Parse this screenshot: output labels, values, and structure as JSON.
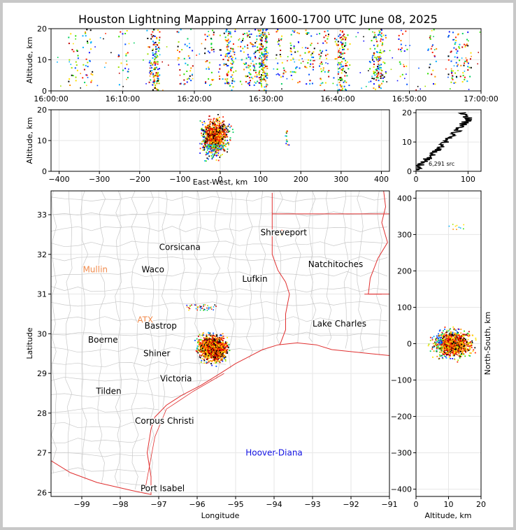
{
  "chart_data": [
    {
      "panel": "time-altitude",
      "type": "scatter",
      "title": "Houston Lightning Mapping Array 1600-1700 UTC June 08, 2025",
      "ylabel": "Altitude, km",
      "xlim": [
        "16:00:00",
        "17:00:00"
      ],
      "ylim": [
        0,
        20
      ],
      "x_ticks": [
        "16:00:00",
        "16:10:00",
        "16:20:00",
        "16:30:00",
        "16:40:00",
        "16:50:00",
        "17:00:00"
      ],
      "y_ticks": [
        0,
        10,
        20
      ],
      "activity_times_min": [
        3,
        5,
        10,
        14,
        18,
        19,
        22,
        24,
        25,
        27,
        28,
        29,
        32,
        34,
        36,
        38,
        40,
        41,
        45,
        46,
        49,
        53,
        56,
        57,
        58
      ]
    },
    {
      "panel": "east-west-altitude",
      "type": "scatter",
      "xlabel": "East-West, km",
      "ylabel": "Altitude, km",
      "xlim": [
        -420,
        420
      ],
      "ylim": [
        0,
        20
      ],
      "x_ticks": [
        -400,
        -300,
        -200,
        -100,
        0,
        100,
        200,
        300,
        400
      ],
      "y_ticks": [
        0,
        10,
        20
      ]
    },
    {
      "panel": "altitude-histogram",
      "type": "line",
      "xlim": [
        0,
        125
      ],
      "ylim": [
        0,
        21
      ],
      "x_ticks": [
        0,
        100
      ],
      "y_ticks": [
        0,
        10,
        20
      ],
      "annotation": "6,291 src",
      "series": [
        {
          "points": [
            [
              2,
              0.5
            ],
            [
              8,
              2
            ],
            [
              20,
              4
            ],
            [
              28,
              5.5
            ],
            [
              38,
              7
            ],
            [
              48,
              8.5
            ],
            [
              58,
              10
            ],
            [
              64,
              11
            ],
            [
              70,
              12
            ],
            [
              75,
              13
            ],
            [
              80,
              14
            ],
            [
              85,
              15
            ],
            [
              90,
              16
            ],
            [
              97,
              17
            ],
            [
              100,
              18
            ],
            [
              95,
              19
            ],
            [
              90,
              20
            ]
          ]
        }
      ]
    },
    {
      "panel": "map",
      "type": "scatter",
      "xlabel": "Longitude",
      "ylabel": "Latitude",
      "xlim": [
        -99.8,
        -91
      ],
      "ylim": [
        25.9,
        33.6
      ],
      "x_ticks": [
        -99,
        -98,
        -97,
        -96,
        -95,
        -94,
        -93,
        -92,
        -91
      ],
      "y_ticks": [
        26,
        27,
        28,
        29,
        30,
        31,
        32,
        33
      ],
      "places": [
        {
          "name": "Shreveport",
          "lon": -93.75,
          "lat": 32.55,
          "color": "#000000"
        },
        {
          "name": "Corsicana",
          "lon": -96.45,
          "lat": 32.18,
          "color": "#000000"
        },
        {
          "name": "Mullin",
          "lon": -98.65,
          "lat": 31.62,
          "color": "#f08a4b"
        },
        {
          "name": "Waco",
          "lon": -97.15,
          "lat": 31.62,
          "color": "#000000"
        },
        {
          "name": "Natchitoches",
          "lon": -92.4,
          "lat": 31.75,
          "color": "#000000"
        },
        {
          "name": "Lufkin",
          "lon": -94.5,
          "lat": 31.38,
          "color": "#000000"
        },
        {
          "name": "ATX",
          "lon": -97.35,
          "lat": 30.35,
          "color": "#f08a4b"
        },
        {
          "name": "Bastrop",
          "lon": -96.95,
          "lat": 30.2,
          "color": "#000000"
        },
        {
          "name": "Lake Charles",
          "lon": -92.3,
          "lat": 30.25,
          "color": "#000000"
        },
        {
          "name": "Boerne",
          "lon": -98.45,
          "lat": 29.85,
          "color": "#000000"
        },
        {
          "name": "Shiner",
          "lon": -97.05,
          "lat": 29.5,
          "color": "#000000"
        },
        {
          "name": "Victoria",
          "lon": -96.55,
          "lat": 28.87,
          "color": "#000000"
        },
        {
          "name": "Tilden",
          "lon": -98.3,
          "lat": 28.55,
          "color": "#000000"
        },
        {
          "name": "Corpus Christi",
          "lon": -96.85,
          "lat": 27.8,
          "color": "#000000"
        },
        {
          "name": "Hoover-Diana",
          "lon": -94.0,
          "lat": 27.0,
          "color": "#1010e0"
        },
        {
          "name": "Port Isabel",
          "lon": -96.9,
          "lat": 26.1,
          "color": "#000000"
        }
      ]
    },
    {
      "panel": "altitude-north-south",
      "type": "scatter",
      "xlabel": "Altitude, km",
      "ylabel": "North-South, km",
      "xlim": [
        0,
        20
      ],
      "ylim": [
        -420,
        420
      ],
      "x_ticks": [
        0,
        10,
        20
      ],
      "y_ticks": [
        -400,
        -300,
        -200,
        -100,
        0,
        100,
        200,
        300,
        400
      ]
    }
  ]
}
